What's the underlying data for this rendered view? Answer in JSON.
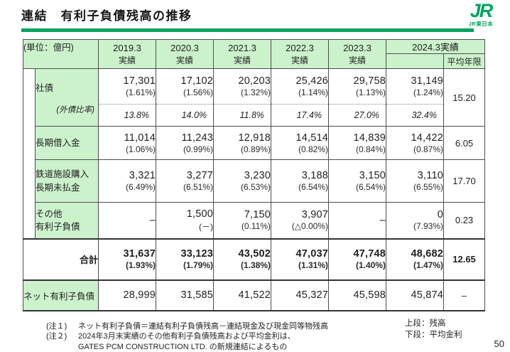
{
  "page": {
    "title": "連結　有利子負債残高の推移",
    "page_number": "50",
    "logo": {
      "mark": "JR",
      "company": "JR東日本"
    },
    "colors": {
      "accent_green": "#00a45f",
      "cell_green": "#ccf2cc",
      "border": "#4d4d4d"
    }
  },
  "table": {
    "unit_label": "(単位：億円)",
    "col_headers": [
      {
        "year": "2019.3",
        "sub": "実績"
      },
      {
        "year": "2020.3",
        "sub": "実績"
      },
      {
        "year": "2021.3",
        "sub": "実績"
      },
      {
        "year": "2022.3",
        "sub": "実績"
      },
      {
        "year": "2023.3",
        "sub": "実績"
      }
    ],
    "col_header_2024": "2024.3実績",
    "avg_header": "平均年限",
    "rows": {
      "shasai": {
        "label": "社債",
        "sub_label": "(外債比率)",
        "cells": [
          {
            "amount": "17,301",
            "rate": "(1.61%)"
          },
          {
            "amount": "17,102",
            "rate": "(1.56%)"
          },
          {
            "amount": "20,203",
            "rate": "(1.32%)"
          },
          {
            "amount": "25,426",
            "rate": "(1.14%)"
          },
          {
            "amount": "29,758",
            "rate": "(1.13%)"
          },
          {
            "amount": "31,149",
            "rate": "(1.24%)"
          }
        ],
        "sub_values": [
          "13.8%",
          "14.0%",
          "11.8%",
          "17.4%",
          "27.0%",
          "32.4%"
        ],
        "avg": "15.20"
      },
      "choki": {
        "label": "長期借入金",
        "cells": [
          {
            "amount": "11,014",
            "rate": "(1.06%)"
          },
          {
            "amount": "11,243",
            "rate": "(0.99%)"
          },
          {
            "amount": "12,918",
            "rate": "(0.89%)"
          },
          {
            "amount": "14,514",
            "rate": "(0.82%)"
          },
          {
            "amount": "14,839",
            "rate": "(0.84%)"
          },
          {
            "amount": "14,422",
            "rate": "(0.87%)"
          }
        ],
        "avg": "6.05"
      },
      "tetsudo": {
        "label_line1": "鉄道施設購入",
        "label_line2": "長期未払金",
        "cells": [
          {
            "amount": "3,321",
            "rate": "(6.49%)"
          },
          {
            "amount": "3,277",
            "rate": "(6.51%)"
          },
          {
            "amount": "3,230",
            "rate": "(6.53%)"
          },
          {
            "amount": "3,188",
            "rate": "(6.54%)"
          },
          {
            "amount": "3,150",
            "rate": "(6.54%)"
          },
          {
            "amount": "3,110",
            "rate": "(6.55%)"
          }
        ],
        "avg": "17.70"
      },
      "sonota": {
        "label_line1": "その他",
        "label_line2": "有利子負債",
        "cells": [
          {
            "amount": "–",
            "rate": ""
          },
          {
            "amount": "1,500",
            "rate": "(－)"
          },
          {
            "amount": "7,150",
            "rate": "(0.11%)"
          },
          {
            "amount": "3,907",
            "rate": "(△0.00%)"
          },
          {
            "amount": "–",
            "rate": ""
          },
          {
            "amount": "0",
            "rate": "(7.93%)"
          }
        ],
        "avg": "0.23"
      },
      "gokei": {
        "label": "合計",
        "cells": [
          {
            "amount": "31,637",
            "rate": "(1.93%)"
          },
          {
            "amount": "33,123",
            "rate": "(1.79%)"
          },
          {
            "amount": "43,502",
            "rate": "(1.38%)"
          },
          {
            "amount": "47,037",
            "rate": "(1.31%)"
          },
          {
            "amount": "47,748",
            "rate": "(1.40%)"
          },
          {
            "amount": "48,682",
            "rate": "(1.47%)"
          }
        ],
        "avg": "12.65"
      },
      "net": {
        "label": "ネット有利子負債",
        "values": [
          "28,999",
          "31,585",
          "41,522",
          "45,327",
          "45,598",
          "45,874"
        ],
        "avg": "–"
      }
    }
  },
  "notes": [
    {
      "label": "(注１)",
      "lines": [
        "ネット有利子負債＝連結有利子負債残高－連結現金及び現金同等物残高"
      ]
    },
    {
      "label": "(注２)",
      "lines": [
        "2024年3月末実績のその他有利子負債残高および平均金利は、",
        "GATES PCM CONSTRUCTION LTD. の新規連結によるもの"
      ]
    }
  ],
  "legend": {
    "line1": "上段：残高",
    "line2": "下段：平均金利"
  }
}
